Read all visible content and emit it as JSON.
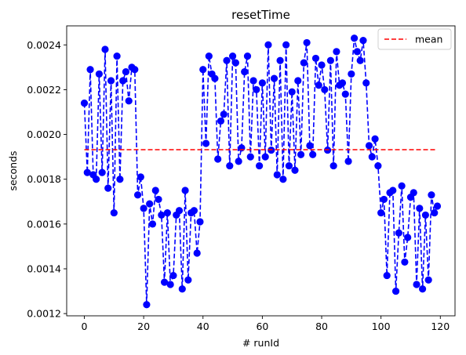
{
  "chart_data": {
    "type": "line",
    "title": "resetTime",
    "xlabel": "# runId",
    "ylabel": "seconds",
    "xlim": [
      -5.95,
      124.95
    ],
    "ylim": [
      0.00119,
      0.002485
    ],
    "xticks": [
      0,
      20,
      40,
      60,
      80,
      100,
      120
    ],
    "xtick_labels": [
      "0",
      "20",
      "40",
      "60",
      "80",
      "100",
      "120"
    ],
    "yticks": [
      0.0012,
      0.0014,
      0.0016,
      0.0018,
      0.002,
      0.0022,
      0.0024
    ],
    "ytick_labels": [
      "0.0012",
      "0.0014",
      "0.0016",
      "0.0018",
      "0.0020",
      "0.0022",
      "0.0024"
    ],
    "grid": false,
    "legend_position": "top-right",
    "series": [
      {
        "name": "",
        "color": "#0000ff",
        "line_style": "dashed",
        "marker": "circle",
        "x": [
          0,
          1,
          2,
          3,
          4,
          5,
          6,
          7,
          8,
          9,
          10,
          11,
          12,
          13,
          14,
          15,
          16,
          17,
          18,
          19,
          20,
          21,
          22,
          23,
          24,
          25,
          26,
          27,
          28,
          29,
          30,
          31,
          32,
          33,
          34,
          35,
          36,
          37,
          38,
          39,
          40,
          41,
          42,
          43,
          44,
          45,
          46,
          47,
          48,
          49,
          50,
          51,
          52,
          53,
          54,
          55,
          56,
          57,
          58,
          59,
          60,
          61,
          62,
          63,
          64,
          65,
          66,
          67,
          68,
          69,
          70,
          71,
          72,
          73,
          74,
          75,
          76,
          77,
          78,
          79,
          80,
          81,
          82,
          83,
          84,
          85,
          86,
          87,
          88,
          89,
          90,
          91,
          92,
          93,
          94,
          95,
          96,
          97,
          98,
          99,
          100,
          101,
          102,
          103,
          104,
          105,
          106,
          107,
          108,
          109,
          110,
          111,
          112,
          113,
          114,
          115,
          116,
          117,
          118,
          119
        ],
        "y": [
          0.00214,
          0.00183,
          0.00229,
          0.00182,
          0.0018,
          0.00227,
          0.00183,
          0.00238,
          0.00176,
          0.00224,
          0.00165,
          0.00235,
          0.0018,
          0.00224,
          0.00228,
          0.00215,
          0.0023,
          0.00229,
          0.00173,
          0.00181,
          0.00167,
          0.00124,
          0.00169,
          0.0016,
          0.00175,
          0.00171,
          0.00164,
          0.00134,
          0.00165,
          0.00133,
          0.00137,
          0.00164,
          0.00166,
          0.00131,
          0.00175,
          0.00135,
          0.00165,
          0.00166,
          0.00147,
          0.00161,
          0.00229,
          0.00196,
          0.00235,
          0.00227,
          0.00225,
          0.00189,
          0.00206,
          0.00209,
          0.00233,
          0.00186,
          0.00235,
          0.00232,
          0.00188,
          0.00194,
          0.00228,
          0.00235,
          0.0019,
          0.00224,
          0.0022,
          0.00186,
          0.00223,
          0.0019,
          0.0024,
          0.00193,
          0.00225,
          0.00182,
          0.00233,
          0.0018,
          0.0024,
          0.00186,
          0.00219,
          0.00184,
          0.00224,
          0.00191,
          0.00232,
          0.00241,
          0.00195,
          0.00191,
          0.00234,
          0.00222,
          0.00231,
          0.0022,
          0.00193,
          0.00233,
          0.00186,
          0.00237,
          0.00222,
          0.00223,
          0.00218,
          0.00188,
          0.00227,
          0.00243,
          0.00237,
          0.00233,
          0.00242,
          0.00223,
          0.00195,
          0.0019,
          0.00198,
          0.00186,
          0.00165,
          0.00171,
          0.00137,
          0.00174,
          0.00175,
          0.0013,
          0.00156,
          0.00177,
          0.00143,
          0.00154,
          0.00172,
          0.00174,
          0.00133,
          0.00167,
          0.00131,
          0.00164,
          0.00135,
          0.00173,
          0.00165,
          0.00168
        ]
      },
      {
        "name": "mean",
        "color": "#ff0000",
        "line_style": "dashed",
        "x": [
          0,
          119
        ],
        "y": [
          0.001932,
          0.001932
        ]
      }
    ]
  }
}
